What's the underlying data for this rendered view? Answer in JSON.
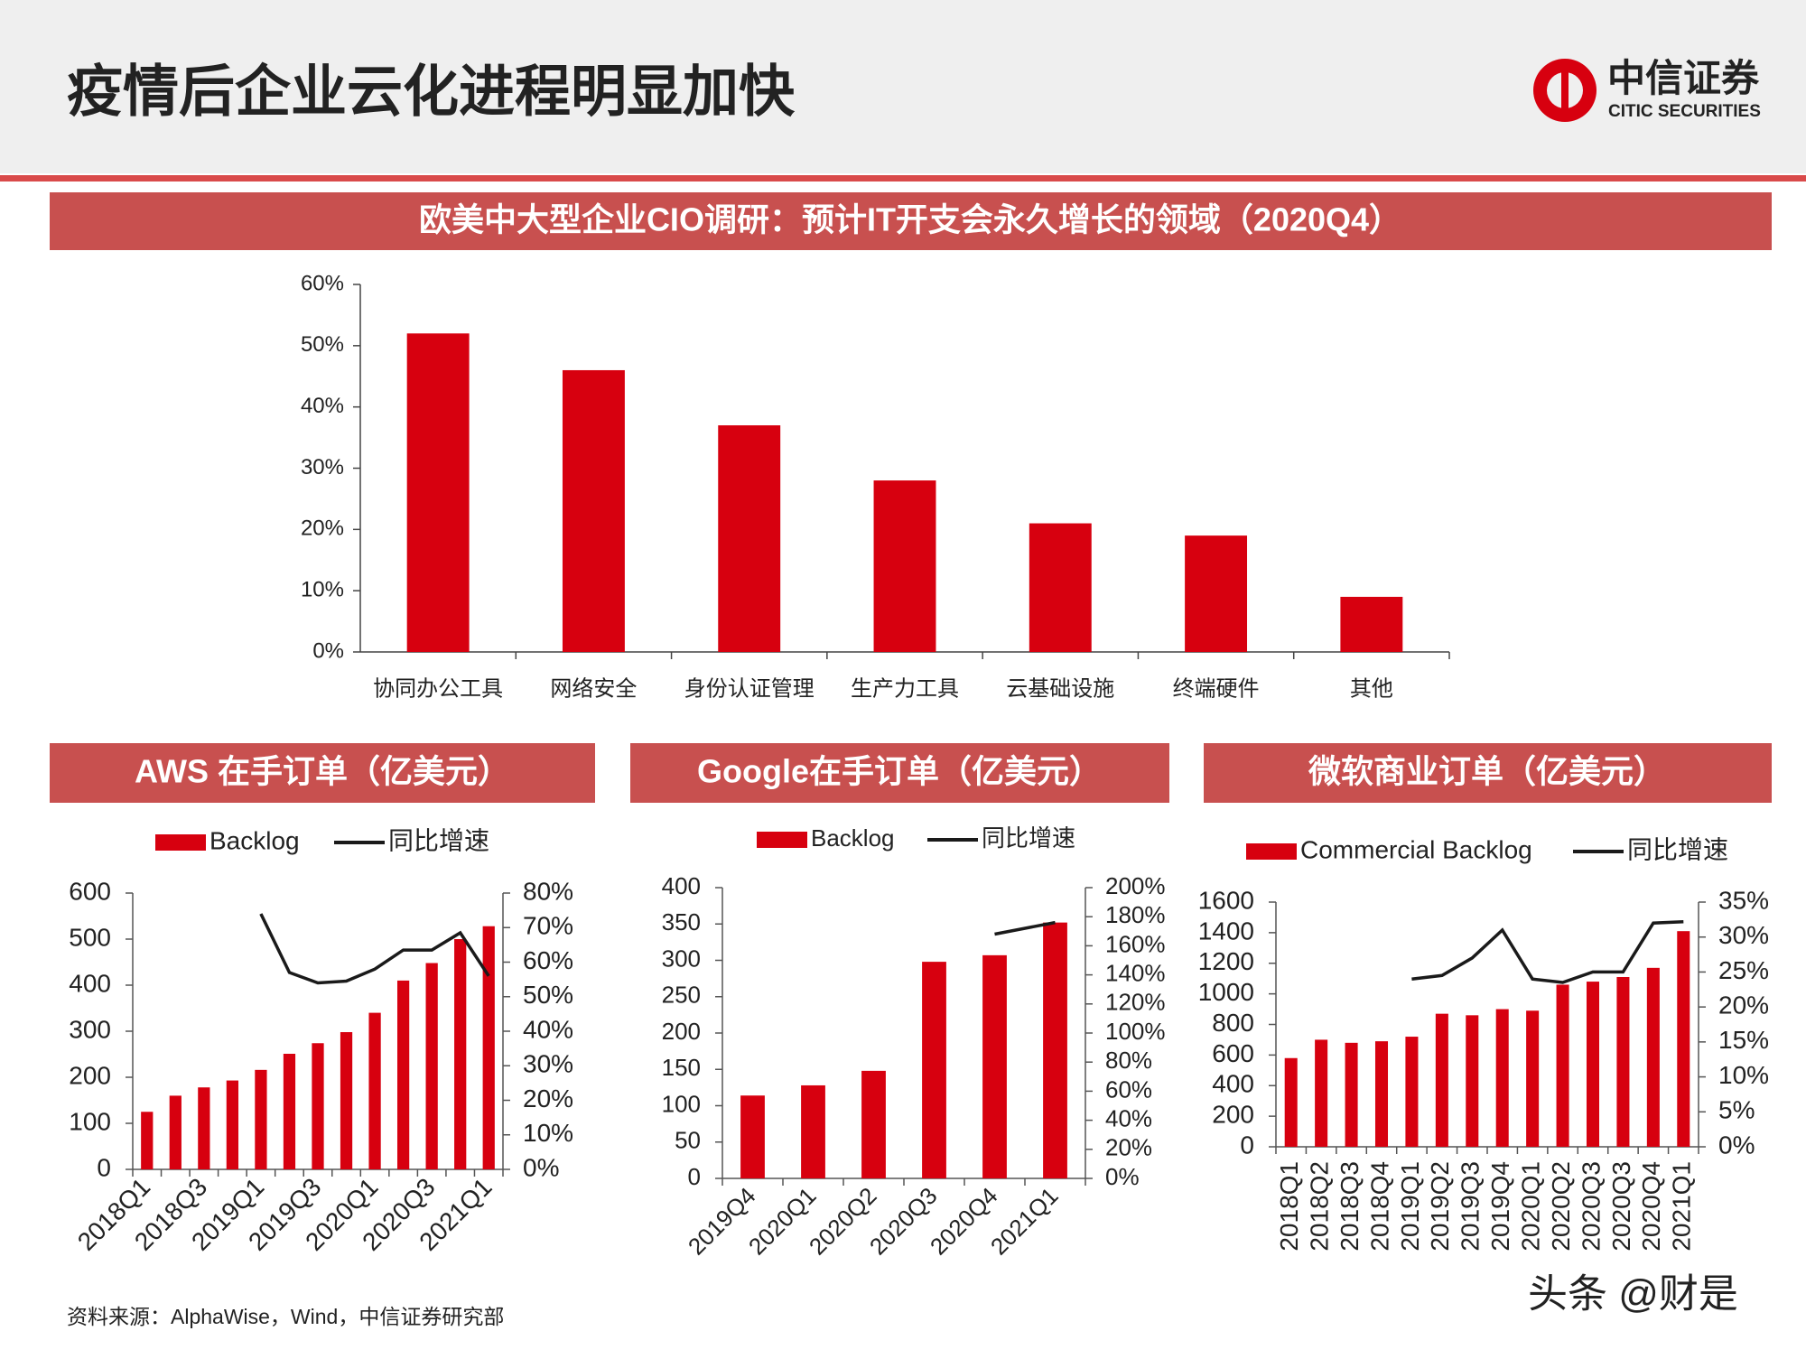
{
  "header": {
    "title": "疫情后企业云化进程明显加快",
    "logo_cn": "中信证券",
    "logo_en": "CITIC SECURITIES"
  },
  "source": "资料来源：AlphaWise，Wind，中信证券研究部",
  "watermark": "头条 @财是",
  "chart_data": [
    {
      "type": "bar",
      "title": "欧美中大型企业CIO调研：预计IT开支会永久增长的领域（2020Q4）",
      "categories": [
        "协同办公工具",
        "网络安全",
        "身份认证管理",
        "生产力工具",
        "云基础设施",
        "终端硬件",
        "其他"
      ],
      "values": [
        52,
        46,
        37,
        28,
        21,
        19,
        9
      ],
      "color": "#d7000f",
      "ylim": [
        0,
        60
      ],
      "yticks": [
        {
          "value": 0,
          "label": "0%"
        },
        {
          "value": 10,
          "label": "10%"
        },
        {
          "value": 20,
          "label": "20%"
        },
        {
          "value": 30,
          "label": "30%"
        },
        {
          "value": 40,
          "label": "40%"
        },
        {
          "value": 50,
          "label": "50%"
        },
        {
          "value": 60,
          "label": "60%"
        }
      ]
    },
    {
      "type": "combo",
      "title": "AWS 在手订单（亿美元）",
      "x_label_rotation": -45,
      "categories": [
        "2018Q1",
        null,
        "2018Q3",
        null,
        "2019Q1",
        null,
        "2019Q3",
        null,
        "2020Q1",
        null,
        "2020Q3",
        null,
        "2021Q1"
      ],
      "series": [
        {
          "name": "Backlog",
          "type": "bar",
          "color": "#d7000f",
          "values": [
            125,
            160,
            178,
            193,
            216,
            251,
            274,
            298,
            340,
            410,
            448,
            500,
            528
          ]
        },
        {
          "name": "同比增速",
          "type": "line",
          "axis": "y2",
          "color": "#1a1a1a",
          "values": [
            null,
            null,
            null,
            null,
            74,
            57,
            54,
            54.5,
            58,
            63.5,
            63.5,
            68.5,
            56
          ]
        }
      ],
      "ylim": [
        0,
        600
      ],
      "yticks": [
        0,
        100,
        200,
        300,
        400,
        500,
        600
      ],
      "y2lim": [
        0,
        80
      ],
      "y2ticks": [
        {
          "value": 0,
          "label": "0%"
        },
        {
          "value": 10,
          "label": "10%"
        },
        {
          "value": 20,
          "label": "20%"
        },
        {
          "value": 30,
          "label": "30%"
        },
        {
          "value": 40,
          "label": "40%"
        },
        {
          "value": 50,
          "label": "50%"
        },
        {
          "value": 60,
          "label": "60%"
        },
        {
          "value": 70,
          "label": "70%"
        },
        {
          "value": 80,
          "label": "80%"
        }
      ]
    },
    {
      "type": "combo",
      "title": "Google在手订单（亿美元）",
      "x_label_rotation": -45,
      "categories": [
        "2019Q4",
        "2020Q1",
        "2020Q2",
        "2020Q3",
        "2020Q4",
        "2021Q1"
      ],
      "series": [
        {
          "name": "Backlog",
          "type": "bar",
          "color": "#d7000f",
          "values": [
            114,
            128,
            148,
            298,
            307,
            352
          ]
        },
        {
          "name": "同比增速",
          "type": "line",
          "axis": "y2",
          "color": "#1a1a1a",
          "values": [
            null,
            null,
            null,
            null,
            168,
            176
          ]
        }
      ],
      "ylim": [
        0,
        400
      ],
      "yticks": [
        0,
        50,
        100,
        150,
        200,
        250,
        300,
        350,
        400
      ],
      "y2lim": [
        0,
        200
      ],
      "y2ticks": [
        {
          "value": 0,
          "label": "0%"
        },
        {
          "value": 20,
          "label": "20%"
        },
        {
          "value": 40,
          "label": "40%"
        },
        {
          "value": 60,
          "label": "60%"
        },
        {
          "value": 80,
          "label": "80%"
        },
        {
          "value": 100,
          "label": "100%"
        },
        {
          "value": 120,
          "label": "120%"
        },
        {
          "value": 140,
          "label": "140%"
        },
        {
          "value": 160,
          "label": "160%"
        },
        {
          "value": 180,
          "label": "180%"
        },
        {
          "value": 200,
          "label": "200%"
        }
      ]
    },
    {
      "type": "combo",
      "title": "微软商业订单（亿美元）",
      "x_label_rotation": -90,
      "categories": [
        "2018Q1",
        "2018Q2",
        "2018Q3",
        "2018Q4",
        "2019Q1",
        "2019Q2",
        "2019Q3",
        "2019Q4",
        "2020Q1",
        "2020Q2",
        "2020Q3",
        "2020Q3",
        "2020Q4",
        "2021Q1"
      ],
      "series": [
        {
          "name": "Commercial Backlog",
          "type": "bar",
          "color": "#d7000f",
          "values": [
            580,
            700,
            680,
            690,
            720,
            870,
            860,
            900,
            890,
            1060,
            1080,
            1110,
            1170,
            1410
          ]
        },
        {
          "name": "同比增速",
          "type": "line",
          "axis": "y2",
          "color": "#1a1a1a",
          "values": [
            null,
            null,
            null,
            null,
            24,
            24.5,
            27,
            31,
            24,
            23.5,
            25,
            25,
            32,
            32.2
          ]
        }
      ],
      "ylim": [
        0,
        1600
      ],
      "yticks": [
        0,
        200,
        400,
        600,
        800,
        1000,
        1200,
        1400,
        1600
      ],
      "y2lim": [
        0,
        35
      ],
      "y2ticks": [
        {
          "value": 0,
          "label": "0%"
        },
        {
          "value": 5,
          "label": "5%"
        },
        {
          "value": 10,
          "label": "10%"
        },
        {
          "value": 15,
          "label": "15%"
        },
        {
          "value": 20,
          "label": "20%"
        },
        {
          "value": 25,
          "label": "25%"
        },
        {
          "value": 30,
          "label": "30%"
        },
        {
          "value": 35,
          "label": "35%"
        }
      ]
    }
  ]
}
